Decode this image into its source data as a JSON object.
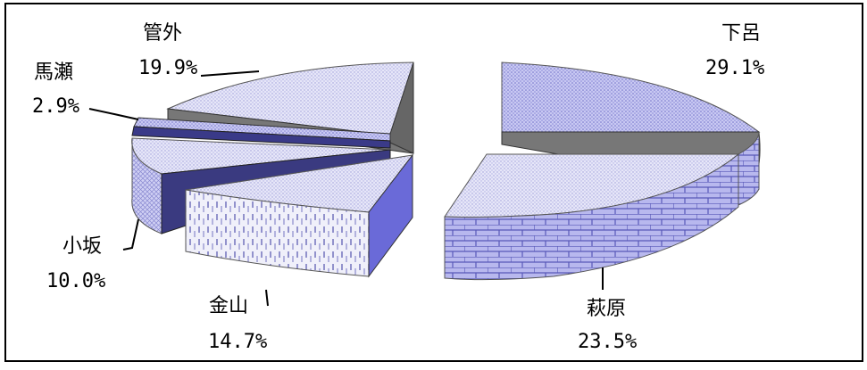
{
  "chart_data": {
    "type": "pie",
    "title": "",
    "slices": [
      {
        "name": "下呂",
        "percent_label": "29.1%",
        "value": 29.1,
        "color": "#9b9be6"
      },
      {
        "name": "萩原",
        "percent_label": "23.5%",
        "value": 23.5,
        "color": "#a8a8e8"
      },
      {
        "name": "金山",
        "percent_label": "14.7%",
        "value": 14.7,
        "color": "#e4e4f6"
      },
      {
        "name": "小坂",
        "percent_label": "10.0%",
        "value": 10.0,
        "color": "#b0b0ec"
      },
      {
        "name": "馬瀬",
        "percent_label": "2.9%",
        "value": 2.9,
        "color": "#5a5ab0"
      },
      {
        "name": "管外",
        "percent_label": "19.9%",
        "value": 19.9,
        "color": "#c4c4f0"
      }
    ],
    "legend": "none",
    "grid": false
  }
}
